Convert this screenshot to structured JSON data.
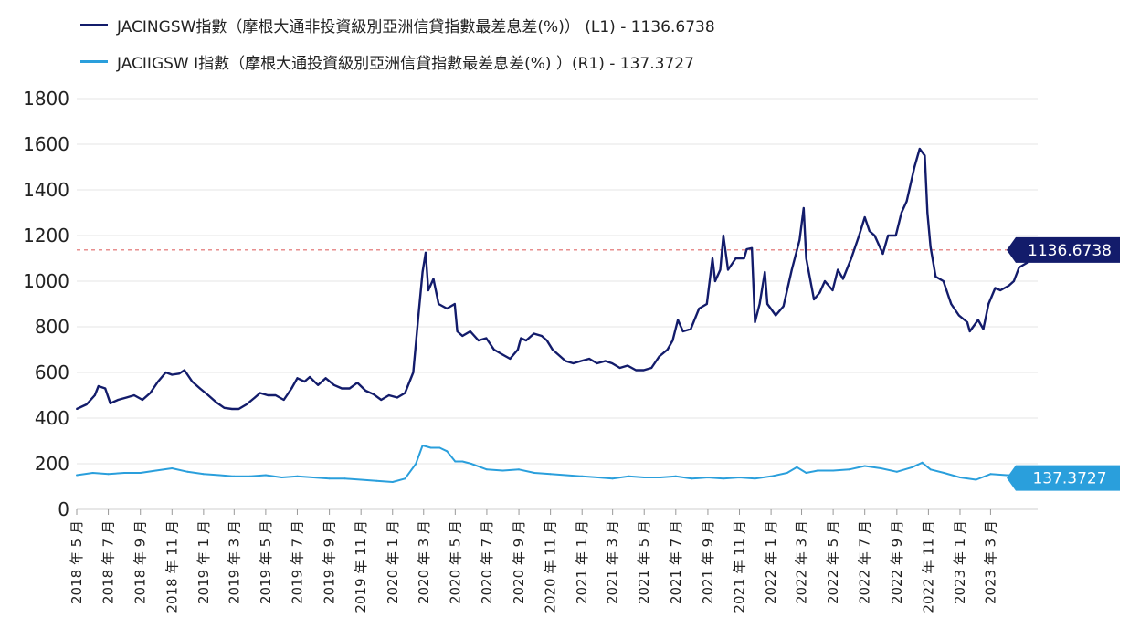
{
  "legend": {
    "series1": "JACINGSW指數（摩根大通非投資級別亞洲信貸指數最差息差(%)） (L1) - 1136.6738",
    "series2": "JACIIGSW I指數（摩根大通投資級別亞洲信貸指數最差息差(%) ）(R1) - 137.3727"
  },
  "colors": {
    "series1": "#131c6b",
    "series2": "#2a9fdc",
    "reference": "#e06a6a",
    "grid": "#e4e4e4"
  },
  "chart_data": {
    "type": "line",
    "ylim": [
      0,
      1800
    ],
    "yticks": [
      0,
      200,
      400,
      600,
      800,
      1000,
      1200,
      1400,
      1600,
      1800
    ],
    "xlim": [
      "2018-05-01",
      "2023-05-31"
    ],
    "x_tick_labels": [
      "2018 年 5 月",
      "2018 年 7 月",
      "2018 年 9 月",
      "2018 年 11 月",
      "2019 年 1 月",
      "2019 年 3 月",
      "2019 年 5 月",
      "2019 年 7 月",
      "2019 年 9 月",
      "2019 年 11 月",
      "2020 年 1 月",
      "2020 年 3 月",
      "2020 年 5 月",
      "2020 年 7 月",
      "2020 年 9 月",
      "2020 年 11 月",
      "2021 年 1 月",
      "2021 年 3 月",
      "2021 年 5 月",
      "2021 年 7 月",
      "2021 年 9 月",
      "2021 年 11 月",
      "2022 年 1 月",
      "2022 年 3 月",
      "2022 年 5 月",
      "2022 年 7 月",
      "2022 年 9 月",
      "2022 年 11 月",
      "2023 年 1 月",
      "2023 年 3 月"
    ],
    "x_tick_dates": [
      "2018-05-01",
      "2018-07-01",
      "2018-09-01",
      "2018-11-01",
      "2019-01-01",
      "2019-03-01",
      "2019-05-01",
      "2019-07-01",
      "2019-09-01",
      "2019-11-01",
      "2020-01-01",
      "2020-03-01",
      "2020-05-01",
      "2020-07-01",
      "2020-09-01",
      "2020-11-01",
      "2021-01-01",
      "2021-03-01",
      "2021-05-01",
      "2021-07-01",
      "2021-09-01",
      "2021-11-01",
      "2022-01-01",
      "2022-03-01",
      "2022-05-01",
      "2022-07-01",
      "2022-09-01",
      "2022-11-01",
      "2023-01-01",
      "2023-03-01"
    ],
    "reference_line": 1136.6738,
    "series": [
      {
        "name": "JACINGSW指數（摩根大通非投資級別亞洲信貸指數最差息差(%)） (L1)",
        "axis": "L1",
        "last_value_label": "1136.6738",
        "points": [
          [
            "2018-05-01",
            440
          ],
          [
            "2018-05-20",
            460
          ],
          [
            "2018-06-05",
            500
          ],
          [
            "2018-06-12",
            540
          ],
          [
            "2018-06-25",
            530
          ],
          [
            "2018-07-05",
            465
          ],
          [
            "2018-07-20",
            480
          ],
          [
            "2018-08-05",
            490
          ],
          [
            "2018-08-20",
            500
          ],
          [
            "2018-09-05",
            480
          ],
          [
            "2018-09-20",
            510
          ],
          [
            "2018-10-05",
            560
          ],
          [
            "2018-10-20",
            600
          ],
          [
            "2018-11-01",
            590
          ],
          [
            "2018-11-15",
            595
          ],
          [
            "2018-11-25",
            610
          ],
          [
            "2018-12-10",
            560
          ],
          [
            "2018-12-25",
            530
          ],
          [
            "2019-01-10",
            500
          ],
          [
            "2019-01-25",
            470
          ],
          [
            "2019-02-10",
            445
          ],
          [
            "2019-02-25",
            440
          ],
          [
            "2019-03-10",
            440
          ],
          [
            "2019-03-25",
            460
          ],
          [
            "2019-04-10",
            490
          ],
          [
            "2019-04-20",
            510
          ],
          [
            "2019-05-05",
            500
          ],
          [
            "2019-05-20",
            500
          ],
          [
            "2019-06-05",
            480
          ],
          [
            "2019-06-20",
            530
          ],
          [
            "2019-07-01",
            575
          ],
          [
            "2019-07-15",
            560
          ],
          [
            "2019-07-25",
            580
          ],
          [
            "2019-08-10",
            545
          ],
          [
            "2019-08-25",
            575
          ],
          [
            "2019-09-10",
            545
          ],
          [
            "2019-09-25",
            530
          ],
          [
            "2019-10-10",
            530
          ],
          [
            "2019-10-25",
            555
          ],
          [
            "2019-11-10",
            520
          ],
          [
            "2019-11-25",
            505
          ],
          [
            "2019-12-10",
            480
          ],
          [
            "2019-12-25",
            500
          ],
          [
            "2020-01-10",
            490
          ],
          [
            "2020-01-25",
            510
          ],
          [
            "2020-02-10",
            600
          ],
          [
            "2020-02-20",
            850
          ],
          [
            "2020-02-28",
            1040
          ],
          [
            "2020-03-05",
            1125
          ],
          [
            "2020-03-10",
            960
          ],
          [
            "2020-03-20",
            1010
          ],
          [
            "2020-03-30",
            900
          ],
          [
            "2020-04-15",
            880
          ],
          [
            "2020-04-30",
            900
          ],
          [
            "2020-05-05",
            780
          ],
          [
            "2020-05-15",
            760
          ],
          [
            "2020-05-30",
            780
          ],
          [
            "2020-06-15",
            740
          ],
          [
            "2020-06-30",
            750
          ],
          [
            "2020-07-15",
            700
          ],
          [
            "2020-07-30",
            680
          ],
          [
            "2020-08-15",
            660
          ],
          [
            "2020-08-30",
            700
          ],
          [
            "2020-09-05",
            750
          ],
          [
            "2020-09-15",
            740
          ],
          [
            "2020-09-30",
            770
          ],
          [
            "2020-10-15",
            760
          ],
          [
            "2020-10-25",
            740
          ],
          [
            "2020-11-05",
            700
          ],
          [
            "2020-11-15",
            680
          ],
          [
            "2020-11-30",
            650
          ],
          [
            "2020-12-15",
            640
          ],
          [
            "2020-12-30",
            650
          ],
          [
            "2021-01-15",
            660
          ],
          [
            "2021-01-30",
            640
          ],
          [
            "2021-02-15",
            650
          ],
          [
            "2021-02-28",
            640
          ],
          [
            "2021-03-15",
            620
          ],
          [
            "2021-03-30",
            630
          ],
          [
            "2021-04-15",
            610
          ],
          [
            "2021-04-30",
            610
          ],
          [
            "2021-05-15",
            620
          ],
          [
            "2021-05-30",
            670
          ],
          [
            "2021-06-15",
            700
          ],
          [
            "2021-06-25",
            740
          ],
          [
            "2021-07-05",
            830
          ],
          [
            "2021-07-15",
            780
          ],
          [
            "2021-07-30",
            790
          ],
          [
            "2021-08-15",
            880
          ],
          [
            "2021-08-30",
            900
          ],
          [
            "2021-09-10",
            1100
          ],
          [
            "2021-09-15",
            1000
          ],
          [
            "2021-09-25",
            1050
          ],
          [
            "2021-10-01",
            1200
          ],
          [
            "2021-10-10",
            1050
          ],
          [
            "2021-10-25",
            1100
          ],
          [
            "2021-11-10",
            1100
          ],
          [
            "2021-11-15",
            1140
          ],
          [
            "2021-11-25",
            1145
          ],
          [
            "2021-12-01",
            820
          ],
          [
            "2021-12-10",
            900
          ],
          [
            "2021-12-20",
            1040
          ],
          [
            "2021-12-25",
            900
          ],
          [
            "2022-01-10",
            850
          ],
          [
            "2022-01-25",
            890
          ],
          [
            "2022-02-10",
            1050
          ],
          [
            "2022-02-25",
            1180
          ],
          [
            "2022-03-05",
            1320
          ],
          [
            "2022-03-10",
            1100
          ],
          [
            "2022-03-25",
            920
          ],
          [
            "2022-04-05",
            950
          ],
          [
            "2022-04-15",
            1000
          ],
          [
            "2022-04-30",
            960
          ],
          [
            "2022-05-10",
            1050
          ],
          [
            "2022-05-20",
            1010
          ],
          [
            "2022-06-05",
            1100
          ],
          [
            "2022-06-20",
            1200
          ],
          [
            "2022-07-01",
            1280
          ],
          [
            "2022-07-10",
            1220
          ],
          [
            "2022-07-20",
            1200
          ],
          [
            "2022-08-05",
            1120
          ],
          [
            "2022-08-15",
            1200
          ],
          [
            "2022-08-30",
            1200
          ],
          [
            "2022-09-10",
            1300
          ],
          [
            "2022-09-20",
            1350
          ],
          [
            "2022-10-05",
            1500
          ],
          [
            "2022-10-15",
            1580
          ],
          [
            "2022-10-25",
            1550
          ],
          [
            "2022-10-30",
            1300
          ],
          [
            "2022-11-05",
            1150
          ],
          [
            "2022-11-15",
            1020
          ],
          [
            "2022-11-30",
            1000
          ],
          [
            "2022-12-15",
            900
          ],
          [
            "2022-12-30",
            850
          ],
          [
            "2023-01-15",
            820
          ],
          [
            "2023-01-20",
            780
          ],
          [
            "2023-02-05",
            830
          ],
          [
            "2023-02-15",
            790
          ],
          [
            "2023-02-25",
            900
          ],
          [
            "2023-03-10",
            970
          ],
          [
            "2023-03-20",
            960
          ],
          [
            "2023-04-05",
            980
          ],
          [
            "2023-04-15",
            1000
          ],
          [
            "2023-04-25",
            1060
          ],
          [
            "2023-05-10",
            1080
          ],
          [
            "2023-05-15",
            1136.67
          ]
        ]
      },
      {
        "name": "JACIIGSW I指數（摩根大通投資級別亞洲信貸指數最差息差(%) ）(R1)",
        "axis": "R1",
        "last_value_label": "137.3727",
        "points": [
          [
            "2018-05-01",
            150
          ],
          [
            "2018-06-01",
            160
          ],
          [
            "2018-07-01",
            155
          ],
          [
            "2018-08-01",
            160
          ],
          [
            "2018-09-01",
            160
          ],
          [
            "2018-10-01",
            170
          ],
          [
            "2018-11-01",
            180
          ],
          [
            "2018-12-01",
            165
          ],
          [
            "2019-01-01",
            155
          ],
          [
            "2019-02-01",
            150
          ],
          [
            "2019-03-01",
            145
          ],
          [
            "2019-04-01",
            145
          ],
          [
            "2019-05-01",
            150
          ],
          [
            "2019-06-01",
            140
          ],
          [
            "2019-07-01",
            145
          ],
          [
            "2019-08-01",
            140
          ],
          [
            "2019-09-01",
            135
          ],
          [
            "2019-10-01",
            135
          ],
          [
            "2019-11-01",
            130
          ],
          [
            "2019-12-01",
            125
          ],
          [
            "2020-01-01",
            120
          ],
          [
            "2020-01-25",
            135
          ],
          [
            "2020-02-15",
            200
          ],
          [
            "2020-02-28",
            280
          ],
          [
            "2020-03-15",
            270
          ],
          [
            "2020-04-01",
            270
          ],
          [
            "2020-04-15",
            255
          ],
          [
            "2020-05-01",
            210
          ],
          [
            "2020-05-15",
            210
          ],
          [
            "2020-06-01",
            200
          ],
          [
            "2020-07-01",
            175
          ],
          [
            "2020-08-01",
            170
          ],
          [
            "2020-09-01",
            175
          ],
          [
            "2020-10-01",
            160
          ],
          [
            "2020-11-01",
            155
          ],
          [
            "2020-12-01",
            150
          ],
          [
            "2021-01-01",
            145
          ],
          [
            "2021-02-01",
            140
          ],
          [
            "2021-03-01",
            135
          ],
          [
            "2021-04-01",
            145
          ],
          [
            "2021-05-01",
            140
          ],
          [
            "2021-06-01",
            140
          ],
          [
            "2021-07-01",
            145
          ],
          [
            "2021-08-01",
            135
          ],
          [
            "2021-09-01",
            140
          ],
          [
            "2021-10-01",
            135
          ],
          [
            "2021-11-01",
            140
          ],
          [
            "2021-12-01",
            135
          ],
          [
            "2022-01-01",
            145
          ],
          [
            "2022-02-01",
            160
          ],
          [
            "2022-02-20",
            185
          ],
          [
            "2022-03-10",
            160
          ],
          [
            "2022-04-01",
            170
          ],
          [
            "2022-05-01",
            170
          ],
          [
            "2022-06-01",
            175
          ],
          [
            "2022-07-01",
            190
          ],
          [
            "2022-08-01",
            180
          ],
          [
            "2022-09-01",
            165
          ],
          [
            "2022-10-01",
            185
          ],
          [
            "2022-10-20",
            205
          ],
          [
            "2022-11-05",
            175
          ],
          [
            "2022-12-01",
            160
          ],
          [
            "2023-01-01",
            140
          ],
          [
            "2023-02-01",
            130
          ],
          [
            "2023-03-01",
            155
          ],
          [
            "2023-04-01",
            150
          ],
          [
            "2023-05-01",
            150
          ],
          [
            "2023-05-15",
            137.37
          ]
        ]
      }
    ]
  }
}
